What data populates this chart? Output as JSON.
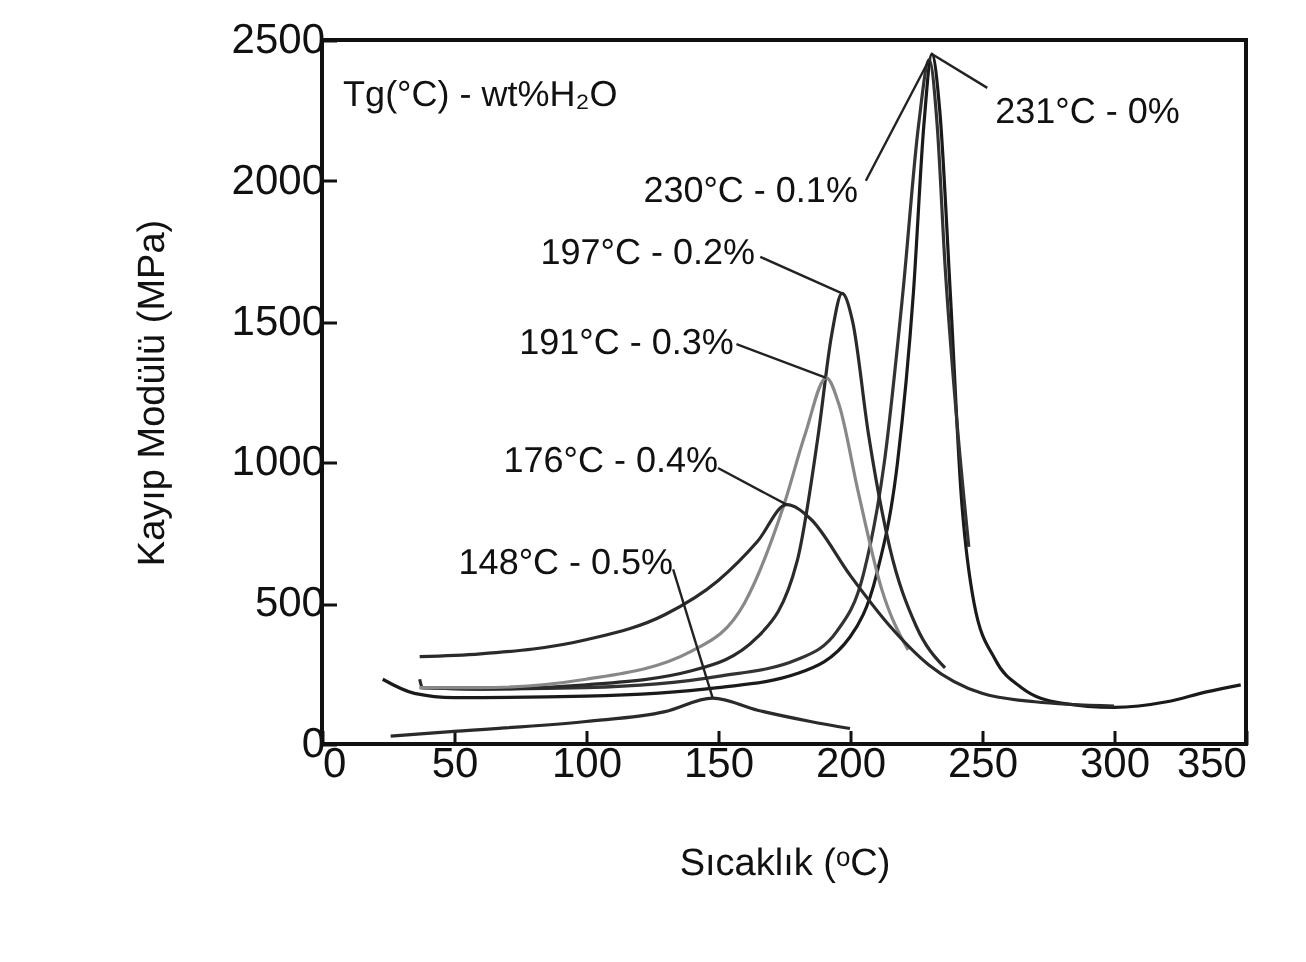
{
  "chart_data": {
    "type": "line",
    "xlabel": "Sıcaklık (ᵒC)",
    "ylabel": "Kayıp Modülü (MPa)",
    "xlim": [
      0,
      350
    ],
    "ylim": [
      0,
      2500
    ],
    "xticks": [
      0,
      50,
      100,
      150,
      200,
      250,
      300,
      350
    ],
    "yticks": [
      0,
      500,
      1000,
      1500,
      2000,
      2500
    ],
    "line_style": "solid",
    "annotations": [
      "Tg(°C) - wt%H₂O",
      {
        "text": "231°C - 0%",
        "x": 231,
        "y": 2450
      },
      {
        "text": "230°C - 0.1%",
        "x": 230,
        "y": 2430
      },
      {
        "text": "197°C - 0.2%",
        "x": 197,
        "y": 1600
      },
      {
        "text": "191°C - 0.3%",
        "x": 191,
        "y": 1300
      },
      {
        "text": "176°C - 0.4%",
        "x": 176,
        "y": 850
      },
      {
        "text": "148°C - 0.5%",
        "x": 148,
        "y": 163
      }
    ],
    "series": [
      {
        "color": "#1a1a1a",
        "x": [
          23,
          35,
          50,
          100,
          150,
          180,
          200,
          210,
          218,
          224,
          228,
          231,
          234,
          238,
          242,
          247,
          255,
          265,
          280,
          300,
          320,
          335,
          348
        ],
        "values": [
          230,
          180,
          165,
          170,
          200,
          250,
          380,
          600,
          1000,
          1600,
          2200,
          2450,
          2250,
          1600,
          900,
          500,
          300,
          200,
          145,
          130,
          150,
          185,
          210
        ]
      },
      {
        "color": "#333333",
        "x": [
          37,
          60,
          100,
          150,
          180,
          195,
          205,
          213,
          220,
          226,
          230,
          233,
          236,
          240,
          245
        ],
        "values": [
          200,
          195,
          200,
          240,
          300,
          400,
          600,
          1000,
          1600,
          2200,
          2430,
          2200,
          1700,
          1200,
          700
        ]
      },
      {
        "color": "#2a2a2a",
        "x": [
          37,
          38,
          60,
          100,
          140,
          165,
          180,
          188,
          193,
          197,
          201,
          207,
          215,
          225,
          236
        ],
        "values": [
          230,
          200,
          195,
          210,
          260,
          380,
          650,
          1100,
          1450,
          1600,
          1500,
          1100,
          700,
          420,
          270
        ]
      },
      {
        "color": "#888888",
        "x": [
          37,
          60,
          100,
          140,
          160,
          175,
          183,
          191,
          196,
          203,
          212,
          222
        ],
        "values": [
          200,
          200,
          230,
          330,
          500,
          850,
          1100,
          1300,
          1200,
          900,
          550,
          334
        ]
      },
      {
        "color": "#2a2a2a",
        "x": [
          37,
          60,
          100,
          130,
          150,
          165,
          176,
          185,
          200,
          215,
          230,
          250,
          270,
          300
        ],
        "values": [
          310,
          320,
          370,
          460,
          580,
          720,
          850,
          800,
          600,
          420,
          280,
          180,
          150,
          135
        ]
      },
      {
        "color": "#2a2a2a",
        "x": [
          26,
          50,
          100,
          130,
          148,
          165,
          185,
          200
        ],
        "values": [
          28,
          45,
          80,
          115,
          163,
          120,
          80,
          55
        ]
      }
    ]
  }
}
